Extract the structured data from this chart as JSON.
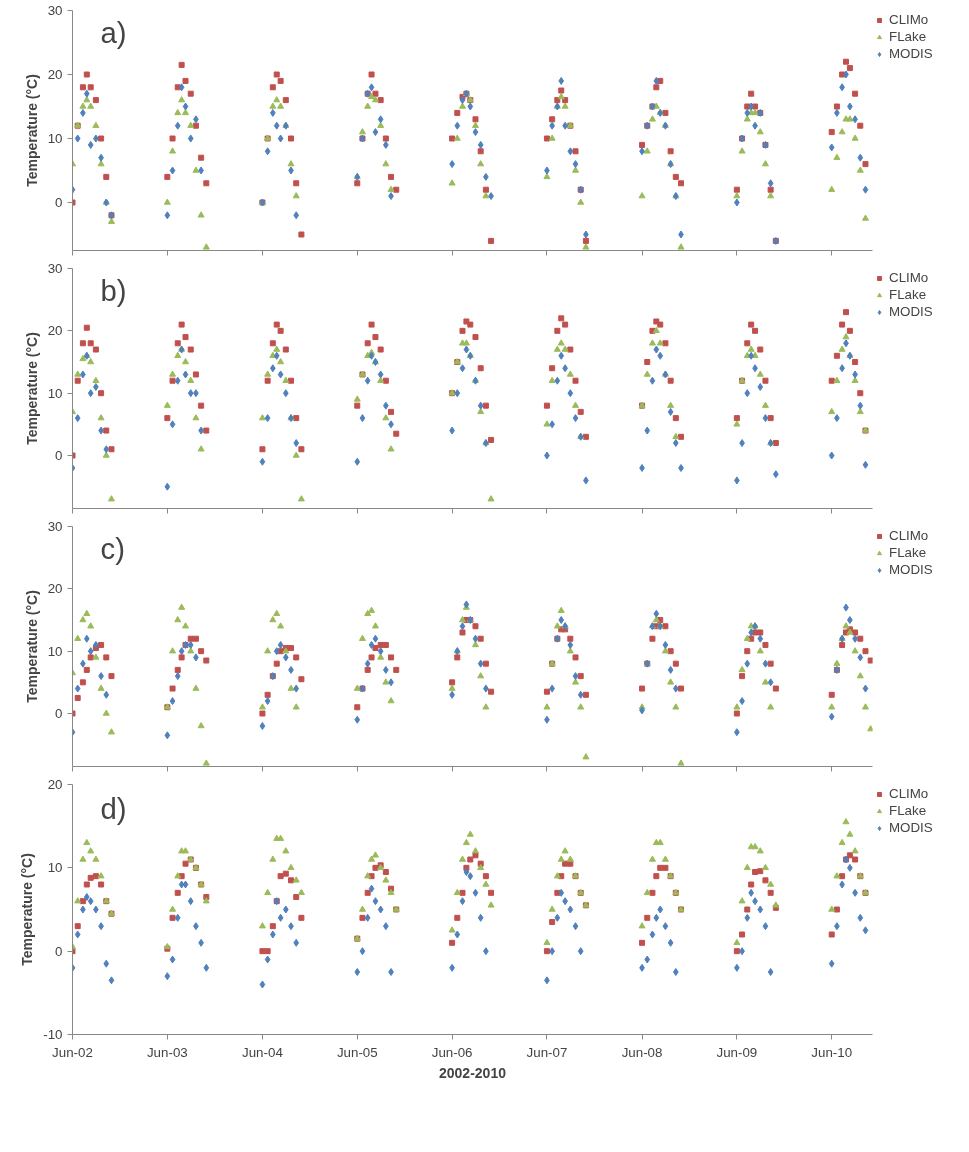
{
  "chart_data": [
    {
      "type": "scatter",
      "ylabel": "Temperature (°C)",
      "annotations": [
        "a)"
      ],
      "legend": "top right",
      "grid": false,
      "tick_labels": "y",
      "xlim": [
        "2002-06-01",
        "2010-11-05"
      ],
      "ylim": [
        -7.5,
        30
      ],
      "yticks": [
        0,
        10,
        20,
        30
      ],
      "xticks": [
        {
          "value": "2002-06-01",
          "label": null
        },
        {
          "value": "2003-06-01",
          "label": null
        },
        {
          "value": "2004-06-01",
          "label": null
        },
        {
          "value": "2005-06-01",
          "label": null
        },
        {
          "value": "2006-06-01",
          "label": null
        },
        {
          "value": "2007-06-01",
          "label": null
        },
        {
          "value": "2008-06-01",
          "label": null
        },
        {
          "value": "2009-06-01",
          "label": null
        },
        {
          "value": "2010-06-01",
          "label": null
        }
      ],
      "x": [
        "2002-06-01",
        "2002-06-21",
        "2002-07-11",
        "2002-07-26",
        "2002-08-10",
        "2002-08-30",
        "2002-09-19",
        "2002-10-09",
        "2002-10-29",
        "2003-06-01",
        "2003-06-21",
        "2003-07-11",
        "2003-07-26",
        "2003-08-10",
        "2003-08-30",
        "2003-09-19",
        "2003-10-09",
        "2003-10-29",
        "2004-06-01",
        "2004-06-21",
        "2004-07-11",
        "2004-07-26",
        "2004-08-10",
        "2004-08-30",
        "2004-09-19",
        "2004-10-09",
        "2004-10-29",
        "2005-06-01",
        "2005-06-21",
        "2005-07-11",
        "2005-07-26",
        "2005-08-10",
        "2005-08-30",
        "2005-09-19",
        "2005-10-09",
        "2005-10-29",
        "2006-06-01",
        "2006-06-21",
        "2006-07-11",
        "2006-07-26",
        "2006-08-10",
        "2006-08-30",
        "2006-09-19",
        "2006-10-09",
        "2006-10-29",
        "2007-06-01",
        "2007-06-21",
        "2007-07-11",
        "2007-07-26",
        "2007-08-10",
        "2007-08-30",
        "2007-09-19",
        "2007-10-09",
        "2007-10-29",
        "2008-06-01",
        "2008-06-21",
        "2008-07-11",
        "2008-07-26",
        "2008-08-10",
        "2008-08-30",
        "2008-09-19",
        "2008-10-09",
        "2008-10-29",
        "2009-06-01",
        "2009-06-21",
        "2009-07-11",
        "2009-07-26",
        "2009-08-10",
        "2009-08-30",
        "2009-09-19",
        "2009-10-09",
        "2009-10-29",
        "2010-06-01",
        "2010-06-21",
        "2010-07-11",
        "2010-07-26",
        "2010-08-10",
        "2010-08-30",
        "2010-09-19",
        "2010-10-09"
      ],
      "series": [
        {
          "name": "CLIMo",
          "color": "#c0504d",
          "marker": "square",
          "values": [
            0,
            12,
            18,
            20,
            18,
            16,
            10,
            4,
            -2,
            4,
            10,
            18,
            21.5,
            19,
            17,
            12,
            7,
            3,
            0,
            10,
            18,
            20,
            19,
            16,
            10,
            3,
            -5,
            3,
            10,
            17,
            20,
            17,
            16,
            10,
            4,
            2,
            10,
            14,
            16.5,
            17,
            16,
            13,
            8,
            2,
            -6,
            10,
            13,
            16,
            17.5,
            16,
            12,
            8,
            2,
            -6,
            9,
            12,
            15,
            18,
            19,
            14,
            8,
            4,
            3,
            2,
            10,
            15,
            17,
            15,
            14,
            9,
            2,
            -6,
            11,
            15,
            20,
            22,
            21,
            17,
            12,
            6
          ]
        },
        {
          "name": "FLake",
          "color": "#9bbb59",
          "marker": "triangle",
          "values": [
            6,
            12,
            15,
            16,
            15,
            12,
            6,
            0,
            -3,
            0,
            8,
            14,
            16,
            14,
            12,
            5,
            -2,
            -7,
            0,
            10,
            15,
            16,
            15,
            12,
            6,
            1,
            null,
            4,
            11,
            15,
            16.5,
            16,
            12,
            6,
            2,
            null,
            3,
            10,
            15,
            17,
            16,
            12,
            6,
            1,
            null,
            4,
            10,
            15,
            16.5,
            15,
            12,
            5,
            0,
            -7,
            1,
            8,
            13,
            15,
            14,
            12,
            6,
            1,
            -7,
            1,
            8,
            13,
            14,
            14,
            11,
            6,
            1,
            null,
            2,
            7,
            11,
            13,
            13,
            10,
            5,
            -2.5
          ]
        },
        {
          "name": "MODIS",
          "color": "#4f81bd",
          "marker": "diamond",
          "values": [
            2,
            10,
            14,
            17,
            9,
            10,
            7,
            0,
            -2,
            -2,
            5,
            12,
            18,
            15,
            10,
            13,
            5,
            null,
            0,
            8,
            14,
            12,
            10,
            12,
            5,
            -2,
            null,
            4,
            10,
            17,
            18,
            11,
            13,
            9,
            1,
            null,
            6,
            12,
            16,
            17,
            15,
            11,
            9,
            4,
            1,
            5,
            12,
            15,
            19,
            12,
            8,
            6,
            2,
            -5,
            8,
            12,
            15,
            19,
            14,
            12,
            6,
            1,
            -5,
            0,
            10,
            14,
            15,
            12,
            14,
            9,
            3,
            -6,
            8.6,
            14,
            18,
            20,
            15,
            13,
            7,
            2
          ]
        }
      ]
    },
    {
      "type": "scatter",
      "ylabel": "Temperature (°C)",
      "annotations": [
        "b)"
      ],
      "legend": "top right",
      "grid": false,
      "tick_labels": "y",
      "xlim": [
        "2002-06-01",
        "2010-11-05"
      ],
      "ylim": [
        -8.5,
        30
      ],
      "yticks": [
        0,
        10,
        20,
        30
      ],
      "xticks": [
        {
          "value": "2002-06-01",
          "label": null
        },
        {
          "value": "2003-06-01",
          "label": null
        },
        {
          "value": "2004-06-01",
          "label": null
        },
        {
          "value": "2005-06-01",
          "label": null
        },
        {
          "value": "2006-06-01",
          "label": null
        },
        {
          "value": "2007-06-01",
          "label": null
        },
        {
          "value": "2008-06-01",
          "label": null
        },
        {
          "value": "2009-06-01",
          "label": null
        },
        {
          "value": "2010-06-01",
          "label": null
        }
      ],
      "x": [
        "2002-06-01",
        "2002-06-21",
        "2002-07-11",
        "2002-07-26",
        "2002-08-10",
        "2002-08-30",
        "2002-09-19",
        "2002-10-09",
        "2002-10-29",
        "2003-06-01",
        "2003-06-21",
        "2003-07-11",
        "2003-07-26",
        "2003-08-10",
        "2003-08-30",
        "2003-09-19",
        "2003-10-09",
        "2003-10-29",
        "2004-06-01",
        "2004-06-21",
        "2004-07-11",
        "2004-07-26",
        "2004-08-10",
        "2004-08-30",
        "2004-09-19",
        "2004-10-09",
        "2004-10-29",
        "2005-06-01",
        "2005-06-21",
        "2005-07-11",
        "2005-07-26",
        "2005-08-10",
        "2005-08-30",
        "2005-09-19",
        "2005-10-09",
        "2005-10-29",
        "2006-06-01",
        "2006-06-21",
        "2006-07-11",
        "2006-07-26",
        "2006-08-10",
        "2006-08-30",
        "2006-09-19",
        "2006-10-09",
        "2006-10-29",
        "2007-06-01",
        "2007-06-21",
        "2007-07-11",
        "2007-07-26",
        "2007-08-10",
        "2007-08-30",
        "2007-09-19",
        "2007-10-09",
        "2007-10-29",
        "2008-06-01",
        "2008-06-21",
        "2008-07-11",
        "2008-07-26",
        "2008-08-10",
        "2008-08-30",
        "2008-09-19",
        "2008-10-09",
        "2008-10-29",
        "2009-06-01",
        "2009-06-21",
        "2009-07-11",
        "2009-07-26",
        "2009-08-10",
        "2009-08-30",
        "2009-09-19",
        "2009-10-09",
        "2009-10-29",
        "2010-06-01",
        "2010-06-21",
        "2010-07-11",
        "2010-07-26",
        "2010-08-10",
        "2010-08-30",
        "2010-09-19",
        "2010-10-09"
      ],
      "series": [
        {
          "name": "CLIMo",
          "color": "#c0504d",
          "marker": "square",
          "values": [
            0,
            12,
            18,
            20.5,
            18,
            17,
            10,
            4,
            1,
            6,
            12,
            18,
            21,
            19,
            17,
            13,
            8,
            4,
            1,
            12,
            18,
            21,
            20,
            17,
            12,
            6,
            1,
            8,
            13,
            18,
            21,
            19,
            17,
            12,
            7,
            3.5,
            10,
            15,
            20,
            21.5,
            21,
            19,
            14,
            8,
            2.5,
            8,
            14,
            20,
            22,
            21,
            17,
            12,
            7,
            3,
            8,
            15,
            20,
            21.5,
            21,
            18,
            12,
            6,
            3,
            6,
            12,
            18,
            21,
            20,
            17,
            12,
            6,
            2,
            12,
            16,
            21,
            23,
            20,
            15,
            10,
            4
          ]
        },
        {
          "name": "FLake",
          "color": "#9bbb59",
          "marker": "triangle",
          "values": [
            7,
            13,
            15.5,
            16,
            15,
            12,
            6,
            0,
            -7,
            8,
            13,
            16,
            17,
            15,
            12,
            6,
            1,
            null,
            6,
            13,
            16,
            17,
            15,
            12,
            6,
            0,
            -7,
            9,
            13,
            16,
            16.5,
            15,
            12,
            6,
            1,
            null,
            10,
            15,
            18,
            18,
            16,
            12,
            7,
            2,
            -7,
            5,
            12,
            17,
            18,
            17,
            13,
            8,
            3,
            null,
            8,
            13,
            18,
            20,
            18,
            13,
            8,
            3,
            null,
            5,
            12,
            16,
            17,
            16,
            13,
            8,
            2,
            null,
            7,
            12,
            17,
            19,
            16,
            12,
            7,
            4
          ]
        },
        {
          "name": "MODIS",
          "color": "#4f81bd",
          "marker": "diamond",
          "values": [
            -2,
            6,
            13,
            16,
            10,
            11,
            4,
            1,
            null,
            -5,
            5,
            12,
            17,
            13,
            10,
            10,
            4,
            null,
            -1,
            6,
            14,
            16,
            13,
            10,
            6,
            2,
            null,
            -1,
            6,
            12,
            16,
            15,
            13,
            8,
            5,
            null,
            4,
            10,
            14,
            17,
            16,
            12,
            8,
            2,
            null,
            0,
            5,
            12,
            16,
            14,
            10,
            6,
            3,
            -4,
            -2,
            4,
            12,
            17,
            16,
            13,
            7,
            2,
            -2,
            -4,
            2,
            10,
            16,
            14,
            11,
            6,
            2,
            -3,
            0,
            6,
            14,
            18,
            16,
            13,
            8,
            -1.5
          ]
        }
      ]
    },
    {
      "type": "scatter",
      "ylabel": "Temperature (°C)",
      "annotations": [
        "c)"
      ],
      "legend": "top right",
      "grid": false,
      "tick_labels": "y",
      "xlim": [
        "2002-06-01",
        "2010-11-05"
      ],
      "ylim": [
        -8.5,
        30
      ],
      "yticks": [
        0,
        10,
        20,
        30
      ],
      "xticks": [
        {
          "value": "2002-06-01",
          "label": null
        },
        {
          "value": "2003-06-01",
          "label": null
        },
        {
          "value": "2004-06-01",
          "label": null
        },
        {
          "value": "2005-06-01",
          "label": null
        },
        {
          "value": "2006-06-01",
          "label": null
        },
        {
          "value": "2007-06-01",
          "label": null
        },
        {
          "value": "2008-06-01",
          "label": null
        },
        {
          "value": "2009-06-01",
          "label": null
        },
        {
          "value": "2010-06-01",
          "label": null
        }
      ],
      "x": [
        "2002-06-01",
        "2002-06-21",
        "2002-07-11",
        "2002-07-26",
        "2002-08-10",
        "2002-08-30",
        "2002-09-19",
        "2002-10-09",
        "2002-10-29",
        "2003-06-01",
        "2003-06-21",
        "2003-07-11",
        "2003-07-26",
        "2003-08-10",
        "2003-08-30",
        "2003-09-19",
        "2003-10-09",
        "2003-10-29",
        "2004-06-01",
        "2004-06-21",
        "2004-07-11",
        "2004-07-26",
        "2004-08-10",
        "2004-08-30",
        "2004-09-19",
        "2004-10-09",
        "2004-10-29",
        "2005-06-01",
        "2005-06-21",
        "2005-07-11",
        "2005-07-26",
        "2005-08-10",
        "2005-08-30",
        "2005-09-19",
        "2005-10-09",
        "2005-10-29",
        "2006-06-01",
        "2006-06-21",
        "2006-07-11",
        "2006-07-26",
        "2006-08-10",
        "2006-08-30",
        "2006-09-19",
        "2006-10-09",
        "2006-10-29",
        "2007-06-01",
        "2007-06-21",
        "2007-07-11",
        "2007-07-26",
        "2007-08-10",
        "2007-08-30",
        "2007-09-19",
        "2007-10-09",
        "2007-10-29",
        "2008-06-01",
        "2008-06-21",
        "2008-07-11",
        "2008-07-26",
        "2008-08-10",
        "2008-08-30",
        "2008-09-19",
        "2008-10-09",
        "2008-10-29",
        "2009-06-01",
        "2009-06-21",
        "2009-07-11",
        "2009-07-26",
        "2009-08-10",
        "2009-08-30",
        "2009-09-19",
        "2009-10-09",
        "2009-10-29",
        "2010-06-01",
        "2010-06-21",
        "2010-07-11",
        "2010-07-26",
        "2010-08-10",
        "2010-08-30",
        "2010-09-19",
        "2010-10-09",
        "2010-10-29"
      ],
      "series": [
        {
          "name": "CLIMo",
          "color": "#c0504d",
          "marker": "square",
          "values": [
            0,
            2.5,
            5,
            7,
            9,
            10.5,
            11,
            9,
            6,
            1,
            4,
            7,
            9,
            11,
            12,
            12,
            10,
            8.5,
            0,
            3,
            6,
            8,
            10,
            10.5,
            10.5,
            9,
            5.5,
            1,
            4,
            7,
            9,
            10.5,
            11,
            11,
            9,
            7,
            5,
            9,
            13,
            15,
            15,
            14,
            12,
            8,
            3.5,
            3.5,
            8,
            12,
            13.5,
            13.5,
            12,
            9,
            6,
            3,
            4,
            8,
            12,
            14,
            15,
            14,
            10,
            8,
            4,
            0,
            6,
            10,
            12,
            13,
            13,
            11,
            8,
            4,
            3,
            7,
            11,
            13,
            13.5,
            13,
            12,
            10,
            8.5
          ]
        },
        {
          "name": "FLake",
          "color": "#9bbb59",
          "marker": "triangle",
          "values": [
            6.5,
            12,
            15,
            16,
            14,
            9,
            4,
            0,
            -3,
            1,
            10,
            15,
            17,
            14,
            10,
            4,
            -2,
            -8,
            1,
            10,
            15,
            16,
            14,
            10,
            4,
            1,
            null,
            4,
            12,
            16,
            16.5,
            14,
            9,
            5,
            2,
            null,
            4,
            10,
            15,
            17,
            15,
            11,
            6,
            1,
            null,
            1,
            8,
            14,
            16.5,
            14,
            10,
            5,
            1,
            -7,
            1,
            8,
            14,
            15,
            14,
            10,
            5,
            1,
            -8,
            1,
            7,
            12,
            14,
            14,
            10,
            5,
            1,
            null,
            1,
            8,
            12,
            14,
            13,
            10,
            6,
            1,
            -2.5
          ]
        },
        {
          "name": "MODIS",
          "color": "#4f81bd",
          "marker": "diamond",
          "values": [
            -3,
            4,
            8,
            12,
            10,
            11,
            6,
            3,
            null,
            -3.5,
            2,
            6,
            10,
            11,
            11,
            9,
            null,
            null,
            -2,
            2,
            6,
            10,
            11,
            9,
            7,
            4,
            null,
            -1,
            4,
            8,
            11,
            12,
            10,
            7,
            5,
            null,
            3,
            10,
            14,
            17.5,
            15,
            12,
            8,
            4,
            null,
            -1,
            4,
            12,
            15,
            14,
            11,
            6,
            3,
            null,
            0.5,
            8,
            14,
            16,
            14,
            11,
            7,
            4,
            null,
            -3,
            2,
            8,
            13,
            14,
            12,
            8,
            5,
            null,
            -0.5,
            7,
            12,
            17,
            15,
            12,
            9,
            4,
            null
          ]
        }
      ]
    },
    {
      "type": "scatter",
      "ylabel": "Temperature (°C)",
      "xlabel": "2002-2010",
      "annotations": [
        "d)"
      ],
      "legend": "top right",
      "grid": false,
      "xlim": [
        "2002-06-01",
        "2010-11-05"
      ],
      "ylim": [
        -10,
        20
      ],
      "yticks": [
        -10,
        0,
        10,
        20
      ],
      "xticks": [
        {
          "value": "2002-06-01",
          "label": "Jun-02"
        },
        {
          "value": "2003-06-01",
          "label": "Jun-03"
        },
        {
          "value": "2004-06-01",
          "label": "Jun-04"
        },
        {
          "value": "2005-06-01",
          "label": "Jun-05"
        },
        {
          "value": "2006-06-01",
          "label": "Jun-06"
        },
        {
          "value": "2007-06-01",
          "label": "Jun-07"
        },
        {
          "value": "2008-06-01",
          "label": "Jun-08"
        },
        {
          "value": "2009-06-01",
          "label": "Jun-09"
        },
        {
          "value": "2010-06-01",
          "label": "Jun-10"
        }
      ],
      "x": [
        "2002-06-01",
        "2002-06-21",
        "2002-07-11",
        "2002-07-26",
        "2002-08-10",
        "2002-08-30",
        "2002-09-19",
        "2002-10-09",
        "2002-10-29",
        "2003-06-01",
        "2003-06-21",
        "2003-07-11",
        "2003-07-26",
        "2003-08-10",
        "2003-08-30",
        "2003-09-19",
        "2003-10-09",
        "2003-10-29",
        "2004-06-01",
        "2004-06-21",
        "2004-07-11",
        "2004-07-26",
        "2004-08-10",
        "2004-08-30",
        "2004-09-19",
        "2004-10-09",
        "2004-10-29",
        "2005-06-01",
        "2005-06-21",
        "2005-07-11",
        "2005-07-26",
        "2005-08-10",
        "2005-08-30",
        "2005-09-19",
        "2005-10-09",
        "2005-10-29",
        "2006-06-01",
        "2006-06-21",
        "2006-07-11",
        "2006-07-26",
        "2006-08-10",
        "2006-08-30",
        "2006-09-19",
        "2006-10-09",
        "2006-10-29",
        "2007-06-01",
        "2007-06-21",
        "2007-07-11",
        "2007-07-26",
        "2007-08-10",
        "2007-08-30",
        "2007-09-19",
        "2007-10-09",
        "2007-10-29",
        "2008-06-01",
        "2008-06-21",
        "2008-07-11",
        "2008-07-26",
        "2008-08-10",
        "2008-08-30",
        "2008-09-19",
        "2008-10-09",
        "2008-10-29",
        "2009-06-01",
        "2009-06-21",
        "2009-07-11",
        "2009-07-26",
        "2009-08-10",
        "2009-08-30",
        "2009-09-19",
        "2009-10-09",
        "2009-10-29",
        "2010-06-01",
        "2010-06-21",
        "2010-07-11",
        "2010-07-26",
        "2010-08-10",
        "2010-08-30",
        "2010-09-19",
        "2010-10-09"
      ],
      "series": [
        {
          "name": "CLIMo",
          "color": "#c0504d",
          "marker": "square",
          "values": [
            0,
            3,
            6,
            8,
            8.8,
            9,
            8,
            6,
            4.5,
            0.3,
            4,
            7,
            9,
            10.5,
            11,
            10,
            8,
            6.5,
            0,
            0,
            3,
            6,
            9,
            9.3,
            8.5,
            6.5,
            4,
            1.5,
            4,
            7,
            9,
            10,
            10.3,
            9.5,
            7.5,
            5,
            1,
            4,
            7,
            10,
            11,
            11.5,
            10.5,
            9,
            7,
            0,
            3.5,
            7,
            9,
            10.5,
            10.5,
            9,
            7,
            5.5,
            1,
            4,
            7,
            9,
            10,
            10,
            9,
            7,
            5,
            0,
            2,
            5,
            8,
            9.5,
            9.6,
            8.5,
            7,
            5.2,
            2,
            5,
            9,
            11,
            11.5,
            11,
            9,
            7
          ]
        },
        {
          "name": "FLake",
          "color": "#9bbb59",
          "marker": "triangle",
          "values": [
            0.5,
            6,
            11,
            13,
            12,
            11,
            9,
            6,
            4.5,
            0.5,
            5,
            9,
            12,
            12,
            11,
            10,
            8,
            6,
            3,
            7,
            11,
            13.5,
            13.5,
            12,
            10,
            8.5,
            7,
            1.5,
            5,
            9,
            11,
            11.5,
            10,
            8.5,
            7,
            5,
            2.5,
            7,
            11,
            13,
            14,
            12,
            10,
            8,
            5.5,
            1,
            5,
            9,
            11,
            12,
            11,
            9,
            7,
            5.5,
            3,
            7,
            11,
            13,
            13,
            11,
            9,
            7,
            5,
            1,
            6,
            10,
            12.5,
            12.5,
            12,
            10,
            8,
            5.5,
            5,
            9,
            13,
            15.5,
            14,
            12,
            9,
            7
          ]
        },
        {
          "name": "MODIS",
          "color": "#4f81bd",
          "marker": "diamond",
          "values": [
            -2,
            2,
            5,
            6.5,
            6,
            5,
            3,
            -1.5,
            -3.5,
            -3,
            -1,
            4,
            8,
            8,
            6,
            3,
            1,
            -2,
            -4,
            -1,
            2,
            6,
            4,
            5,
            3,
            1,
            null,
            -2.5,
            0,
            4,
            7.5,
            6,
            5,
            3,
            -2.5,
            null,
            -2,
            2,
            6,
            9.5,
            9,
            7,
            4,
            0,
            null,
            -3.5,
            0,
            4,
            7,
            6,
            5,
            3,
            0,
            null,
            -2,
            -1,
            2,
            4,
            5,
            3,
            1,
            -2.5,
            null,
            -2,
            0,
            4,
            7,
            6,
            5,
            3,
            -2.5,
            null,
            -1.5,
            3,
            8,
            11,
            10,
            7,
            4,
            2.5
          ]
        }
      ]
    }
  ]
}
